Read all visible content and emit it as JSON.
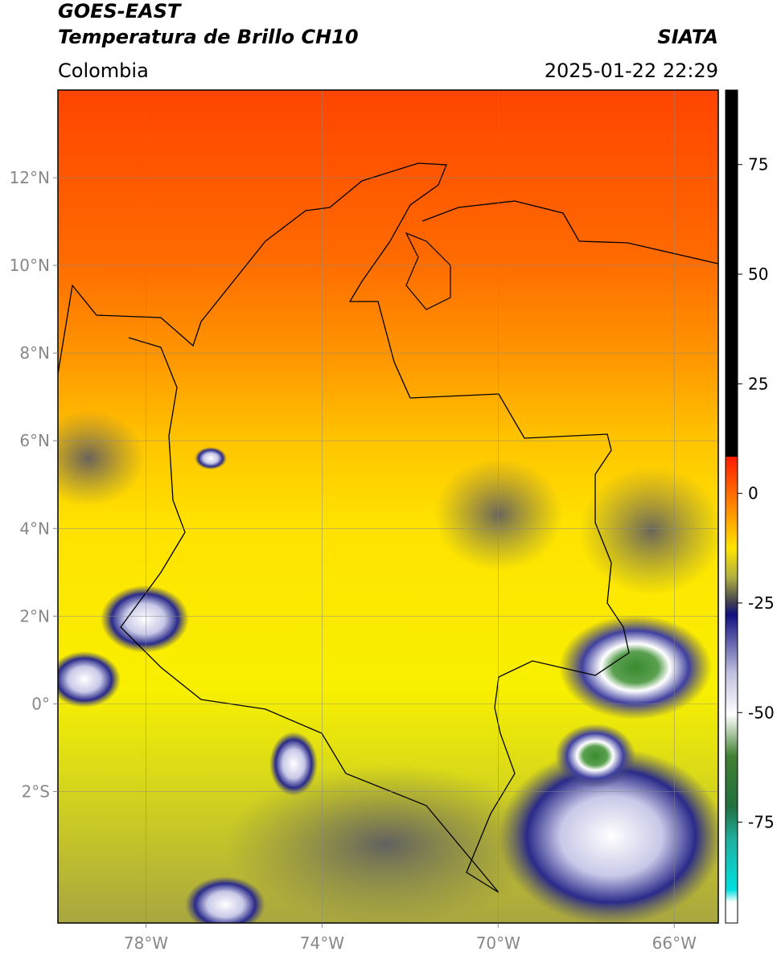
{
  "header": {
    "satellite": "GOES-EAST",
    "product": "Temperatura de Brillo CH10",
    "source": "SIATA",
    "region": "Colombia",
    "datetime": "2025-01-22 22:29"
  },
  "map": {
    "xlim": [
      -80,
      -65
    ],
    "ylim": [
      -5,
      14
    ],
    "xticks": [
      {
        "value": -78,
        "label": "78°W"
      },
      {
        "value": -74,
        "label": "74°W"
      },
      {
        "value": -70,
        "label": "70°W"
      },
      {
        "value": -66,
        "label": "66°W"
      }
    ],
    "yticks": [
      {
        "value": 12,
        "label": "12°N"
      },
      {
        "value": 10,
        "label": "10°N"
      },
      {
        "value": 8,
        "label": "8°N"
      },
      {
        "value": 6,
        "label": "6°N"
      },
      {
        "value": 4,
        "label": "4°N"
      },
      {
        "value": 2,
        "label": "2°N"
      },
      {
        "value": 0,
        "label": "0°"
      },
      {
        "value": -2,
        "label": "2°S"
      }
    ],
    "grid": true
  },
  "colorbar": {
    "lim": [
      -98,
      92
    ],
    "ticks": [
      75,
      50,
      25,
      0,
      -25,
      -50,
      -75
    ]
  }
}
